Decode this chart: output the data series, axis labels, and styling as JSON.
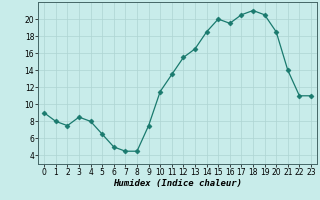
{
  "x": [
    0,
    1,
    2,
    3,
    4,
    5,
    6,
    7,
    8,
    9,
    10,
    11,
    12,
    13,
    14,
    15,
    16,
    17,
    18,
    19,
    20,
    21,
    22,
    23
  ],
  "y": [
    9,
    8,
    7.5,
    8.5,
    8,
    6.5,
    5,
    4.5,
    4.5,
    7.5,
    11.5,
    13.5,
    15.5,
    16.5,
    18.5,
    20,
    19.5,
    20.5,
    21,
    20.5,
    18.5,
    14,
    11,
    11
  ],
  "line_color": "#1a7a6e",
  "marker": "D",
  "marker_size": 2.5,
  "bg_color": "#c8ecea",
  "grid_color": "#aed4d2",
  "xlabel": "Humidex (Indice chaleur)",
  "ylim": [
    3,
    22
  ],
  "xlim": [
    -0.5,
    23.5
  ],
  "yticks": [
    4,
    6,
    8,
    10,
    12,
    14,
    16,
    18,
    20
  ],
  "xticks": [
    0,
    1,
    2,
    3,
    4,
    5,
    6,
    7,
    8,
    9,
    10,
    11,
    12,
    13,
    14,
    15,
    16,
    17,
    18,
    19,
    20,
    21,
    22,
    23
  ],
  "tick_fontsize": 5.5,
  "xlabel_fontsize": 6.5
}
